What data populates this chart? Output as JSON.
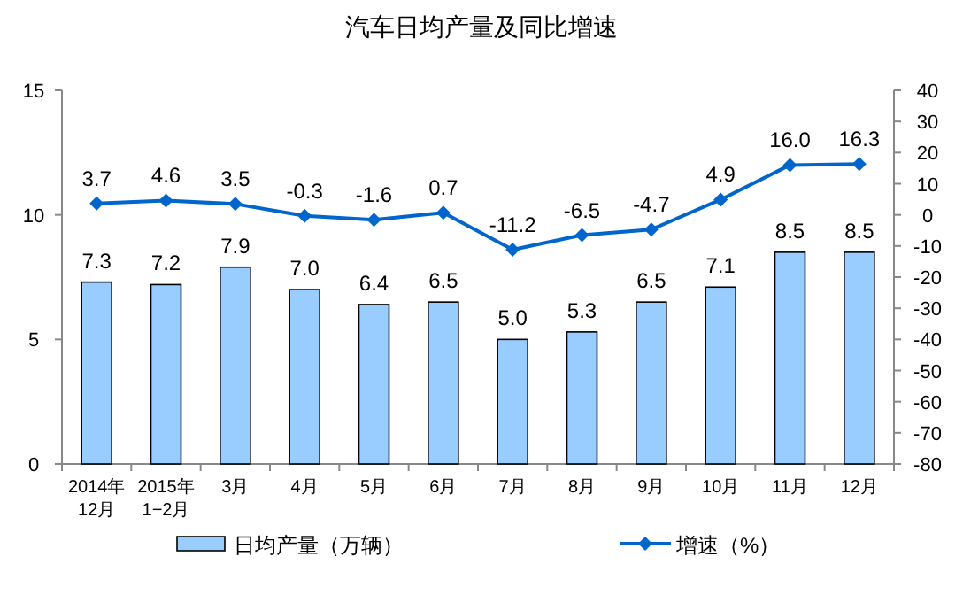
{
  "chart_data": {
    "type": "bar",
    "title": "汽车日均产量及同比增速",
    "categories": [
      "2014年\n12月",
      "2015年\n1−2月",
      "3月",
      "4月",
      "5月",
      "6月",
      "7月",
      "8月",
      "9月",
      "10月",
      "11月",
      "12月"
    ],
    "series": [
      {
        "name": "日均产量（万辆）",
        "color": "#99ccff",
        "values": [
          7.3,
          7.2,
          7.9,
          7.0,
          6.4,
          6.5,
          5.0,
          5.3,
          6.5,
          7.1,
          8.5,
          8.5
        ],
        "value_labels": [
          "7.3",
          "7.2",
          "7.9",
          "7.0",
          "6.4",
          "6.5",
          "5.0",
          "5.3",
          "6.5",
          "7.1",
          "8.5",
          "8.5"
        ]
      },
      {
        "name": "增速（%）",
        "type": "line",
        "axis": "y2",
        "color": "#0066cc",
        "marker": "diamond",
        "values": [
          3.7,
          4.6,
          3.5,
          -0.3,
          -1.6,
          0.7,
          -11.2,
          -6.5,
          -4.7,
          4.9,
          16.0,
          16.3
        ],
        "value_labels": [
          "3.7",
          "4.6",
          "3.5",
          "-0.3",
          "-1.6",
          "0.7",
          "-11.2",
          "-6.5",
          "-4.7",
          "4.9",
          "16.0",
          "16.3"
        ]
      }
    ],
    "ylim": [
      0,
      15
    ],
    "yticks": [
      0,
      5,
      10,
      15
    ],
    "y2lim": [
      -80,
      40
    ],
    "y2ticks": [
      -80,
      -70,
      -60,
      -50,
      -40,
      -30,
      -20,
      -10,
      0,
      10,
      20,
      30,
      40
    ],
    "legend": "bottom",
    "grid": false
  }
}
